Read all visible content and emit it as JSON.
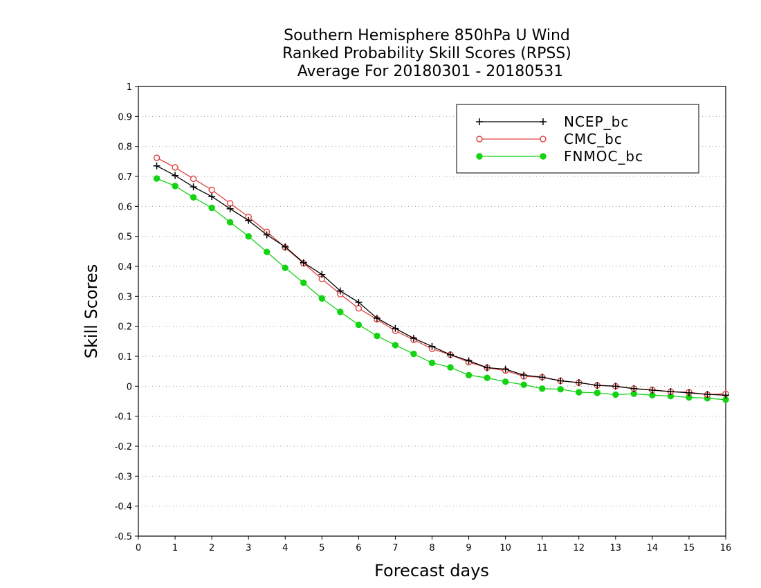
{
  "chart_data": {
    "type": "line",
    "title_lines": [
      "Southern Hemisphere 850hPa U Wind",
      "Ranked Probability Skill Scores (RPSS)",
      "Average For 20180301 - 20180531"
    ],
    "xlabel": "Forecast days",
    "ylabel": "Skill Scores",
    "xlim": [
      0,
      16
    ],
    "ylim": [
      -0.5,
      1
    ],
    "x_ticks": [
      0,
      1,
      2,
      3,
      4,
      5,
      6,
      7,
      8,
      9,
      10,
      11,
      12,
      13,
      14,
      15,
      16
    ],
    "y_ticks": [
      -0.5,
      -0.4,
      -0.3,
      -0.2,
      -0.1,
      0,
      0.1,
      0.2,
      0.3,
      0.4,
      0.5,
      0.6,
      0.7,
      0.8,
      0.9,
      1
    ],
    "y_tick_labels": [
      "-0.5",
      "-0.4",
      "-0.3",
      "-0.2",
      "-0.1",
      "0",
      "0.1",
      "0.2",
      "0.3",
      "0.4",
      "0.5",
      "0.6",
      "0.7",
      "0.8",
      "0.9",
      "1"
    ],
    "grid": "horizontal dotted",
    "legend_position": "top-right",
    "x": [
      0.5,
      1,
      1.5,
      2,
      2.5,
      3,
      3.5,
      4,
      4.5,
      5,
      5.5,
      6,
      6.5,
      7,
      7.5,
      8,
      8.5,
      9,
      9.5,
      10,
      10.5,
      11,
      11.5,
      12,
      12.5,
      13,
      13.5,
      14,
      14.5,
      15,
      15.5,
      16
    ],
    "series": [
      {
        "name": "NCEP_bc",
        "color": "#000000",
        "marker": "plus",
        "values": [
          0.735,
          0.703,
          0.665,
          0.633,
          0.592,
          0.553,
          0.505,
          0.465,
          0.412,
          0.373,
          0.318,
          0.28,
          0.227,
          0.193,
          0.16,
          0.133,
          0.105,
          0.085,
          0.062,
          0.057,
          0.037,
          0.03,
          0.018,
          0.012,
          0.003,
          0.0,
          -0.008,
          -0.013,
          -0.018,
          -0.022,
          -0.027,
          -0.03
        ]
      },
      {
        "name": "CMC_bc",
        "color": "#e0403f",
        "marker": "open-circle",
        "values": [
          0.762,
          0.73,
          0.692,
          0.655,
          0.61,
          0.565,
          0.515,
          0.463,
          0.41,
          0.358,
          0.307,
          0.26,
          0.223,
          0.185,
          0.155,
          0.125,
          0.105,
          0.08,
          0.062,
          0.052,
          0.033,
          0.03,
          0.018,
          0.012,
          0.003,
          0.0,
          -0.008,
          -0.012,
          -0.018,
          -0.02,
          -0.028,
          -0.025
        ]
      },
      {
        "name": "FNMOC_bc",
        "color": "#13d313",
        "marker": "filled-circle",
        "values": [
          0.693,
          0.668,
          0.63,
          0.595,
          0.547,
          0.5,
          0.448,
          0.395,
          0.345,
          0.293,
          0.248,
          0.205,
          0.168,
          0.137,
          0.108,
          0.078,
          0.063,
          0.037,
          0.028,
          0.015,
          0.005,
          -0.008,
          -0.01,
          -0.02,
          -0.022,
          -0.028,
          -0.025,
          -0.03,
          -0.033,
          -0.037,
          -0.04,
          -0.045
        ]
      }
    ]
  }
}
